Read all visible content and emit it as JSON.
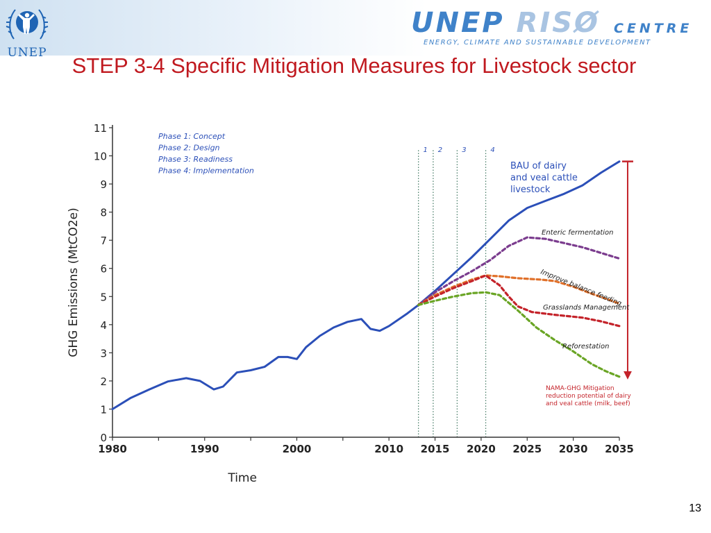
{
  "slide": {
    "title": "STEP 3-4 Specific Mitigation Measures for Livestock sector",
    "page_number": "13"
  },
  "logos": {
    "unep": "UNEP",
    "riso_main_1": "UNEP",
    "riso_main_2": "RISØ",
    "riso_centre": "CENTRE",
    "riso_sub": "ENERGY, CLIMATE AND SUSTAINABLE DEVELOPMENT"
  },
  "colors": {
    "title": "#c0191f",
    "bau": "#2b4fb8",
    "enteric": "#7b3c8e",
    "balance": "#e0702a",
    "grasslands": "#c4232a",
    "reforestation": "#6aa525",
    "arrow": "#c4232a",
    "phase_text": "#2b4fb8"
  },
  "chart_data": {
    "type": "line",
    "title": "",
    "xlabel": "Time",
    "ylabel": "GHG Emissions (MtCO2e)",
    "xlim": [
      1980,
      2035
    ],
    "ylim": [
      0,
      11
    ],
    "x_ticks": [
      1980,
      1990,
      2000,
      2010,
      2015,
      2020,
      2025,
      2030,
      2035
    ],
    "y_ticks": [
      0,
      1,
      2,
      3,
      4,
      5,
      6,
      7,
      8,
      9,
      10,
      11
    ],
    "phase_legend": [
      "Phase 1: Concept",
      "Phase 2: Design",
      "Phase 3: Readiness",
      "Phase 4: Implementation"
    ],
    "phase_lines": [
      {
        "label": "1",
        "x": 2013.2
      },
      {
        "label": "2",
        "x": 2014.8
      },
      {
        "label": "3",
        "x": 2017.4
      },
      {
        "label": "4",
        "x": 2020.5
      }
    ],
    "series": [
      {
        "name": "BAU of dairy and veal cattle livestock",
        "label_lines": [
          "BAU of dairy",
          "and veal cattle",
          "livestock"
        ],
        "style": "solid",
        "color_key": "bau",
        "points": [
          [
            1980,
            1.0
          ],
          [
            1982,
            1.4
          ],
          [
            1984,
            1.7
          ],
          [
            1986,
            1.98
          ],
          [
            1988,
            2.1
          ],
          [
            1989.5,
            2.0
          ],
          [
            1991,
            1.7
          ],
          [
            1992,
            1.8
          ],
          [
            1993.5,
            2.3
          ],
          [
            1995,
            2.38
          ],
          [
            1996.5,
            2.5
          ],
          [
            1998,
            2.85
          ],
          [
            1999,
            2.85
          ],
          [
            2000,
            2.78
          ],
          [
            2001,
            3.2
          ],
          [
            2002.5,
            3.6
          ],
          [
            2004,
            3.9
          ],
          [
            2005.5,
            4.1
          ],
          [
            2007,
            4.2
          ],
          [
            2008,
            3.85
          ],
          [
            2009,
            3.78
          ],
          [
            2010,
            3.95
          ],
          [
            2012,
            4.4
          ],
          [
            2013.2,
            4.7
          ],
          [
            2015,
            5.2
          ],
          [
            2017,
            5.8
          ],
          [
            2019,
            6.4
          ],
          [
            2021,
            7.05
          ],
          [
            2023,
            7.7
          ],
          [
            2025,
            8.15
          ],
          [
            2027,
            8.4
          ],
          [
            2029,
            8.65
          ],
          [
            2031,
            8.95
          ],
          [
            2033,
            9.4
          ],
          [
            2035,
            9.8
          ]
        ]
      },
      {
        "name": "Enteric fermentation",
        "label_lines": [
          "Enteric fermentation"
        ],
        "style": "dashed",
        "color_key": "enteric",
        "points": [
          [
            2013.2,
            4.7
          ],
          [
            2015,
            5.15
          ],
          [
            2017,
            5.55
          ],
          [
            2019,
            5.9
          ],
          [
            2021,
            6.3
          ],
          [
            2023,
            6.8
          ],
          [
            2025,
            7.1
          ],
          [
            2027,
            7.05
          ],
          [
            2029,
            6.9
          ],
          [
            2031,
            6.75
          ],
          [
            2033,
            6.55
          ],
          [
            2035,
            6.35
          ]
        ]
      },
      {
        "name": "Improve balance feeding",
        "label_lines": [
          "Improve balance feeding"
        ],
        "style": "dashed",
        "color_key": "balance",
        "points": [
          [
            2013.2,
            4.7
          ],
          [
            2015,
            5.05
          ],
          [
            2017,
            5.35
          ],
          [
            2019,
            5.6
          ],
          [
            2020.5,
            5.75
          ],
          [
            2022,
            5.72
          ],
          [
            2024,
            5.65
          ],
          [
            2026.5,
            5.6
          ],
          [
            2028,
            5.55
          ],
          [
            2030,
            5.35
          ],
          [
            2032,
            5.1
          ],
          [
            2035,
            4.75
          ]
        ]
      },
      {
        "name": "Grasslands Management",
        "label_lines": [
          "Grasslands Management"
        ],
        "style": "dashed",
        "color_key": "grasslands",
        "points": [
          [
            2013.2,
            4.7
          ],
          [
            2015,
            5.0
          ],
          [
            2017,
            5.3
          ],
          [
            2019,
            5.55
          ],
          [
            2020.5,
            5.75
          ],
          [
            2022,
            5.4
          ],
          [
            2023,
            5.0
          ],
          [
            2024,
            4.65
          ],
          [
            2025.5,
            4.45
          ],
          [
            2028,
            4.35
          ],
          [
            2031,
            4.25
          ],
          [
            2033,
            4.12
          ],
          [
            2035,
            3.95
          ]
        ]
      },
      {
        "name": "Reforestation",
        "label_lines": [
          "Reforestation"
        ],
        "style": "dashed",
        "color_key": "reforestation",
        "points": [
          [
            2013.2,
            4.7
          ],
          [
            2015,
            4.85
          ],
          [
            2017,
            5.0
          ],
          [
            2019,
            5.12
          ],
          [
            2020.5,
            5.15
          ],
          [
            2022,
            5.05
          ],
          [
            2024,
            4.5
          ],
          [
            2026,
            3.9
          ],
          [
            2028,
            3.45
          ],
          [
            2030,
            3.05
          ],
          [
            2032,
            2.6
          ],
          [
            2033.5,
            2.35
          ],
          [
            2035,
            2.15
          ]
        ]
      }
    ],
    "reduction_annotation": {
      "label_lines": [
        "NAMA-GHG Mitigation",
        "reduction potential of dairy",
        "and veal cattle (milk, beef)"
      ],
      "x": 2035.3,
      "y_top": 9.8,
      "y_bottom": 2.15
    }
  }
}
